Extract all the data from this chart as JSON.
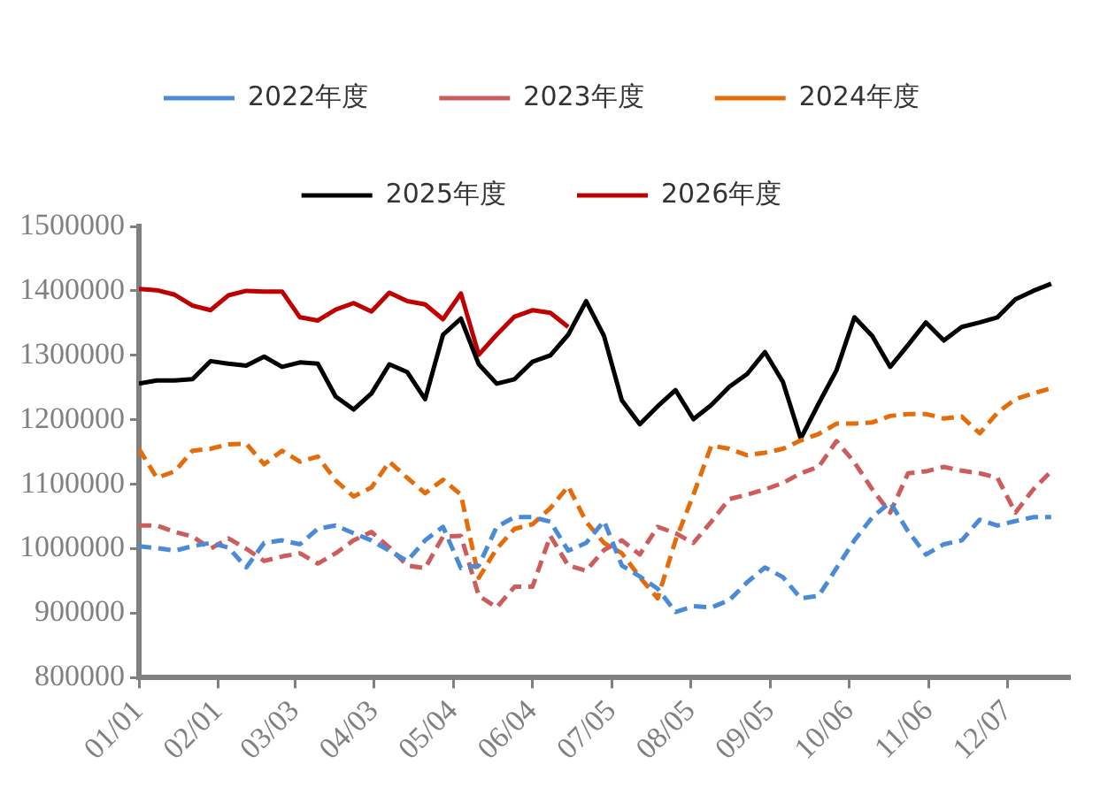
{
  "chart_data": {
    "type": "line",
    "x": [
      "--01-01",
      "--01-08",
      "--01-15",
      "--01-22",
      "--01-29",
      "--02-05",
      "--02-12",
      "--02-19",
      "--02-26",
      "--03-05",
      "--03-12",
      "--03-19",
      "--03-26",
      "--04-02",
      "--04-09",
      "--04-16",
      "--04-23",
      "--04-30",
      "--05-07",
      "--05-14",
      "--05-21",
      "--05-28",
      "--06-04",
      "--06-11",
      "--06-18",
      "--06-25",
      "--07-02",
      "--07-09",
      "--07-16",
      "--07-23",
      "--07-30",
      "--08-06",
      "--08-13",
      "--08-20",
      "--08-27",
      "--09-03",
      "--09-10",
      "--09-17",
      "--09-24",
      "--10-01",
      "--10-08",
      "--10-15",
      "--10-22",
      "--10-29",
      "--11-05",
      "--11-12",
      "--11-19",
      "--11-26",
      "--12-03",
      "--12-10",
      "--12-17",
      "--12-24"
    ],
    "series": [
      {
        "name": "2022年度",
        "color": "#4a8ad6",
        "line_style": "dashed",
        "values": [
          1004000,
          1001000,
          997000,
          1004000,
          1009000,
          1002000,
          971000,
          1009000,
          1013000,
          1007000,
          1031000,
          1036000,
          1024000,
          1013000,
          997000,
          981000,
          1013000,
          1034000,
          970000,
          974000,
          1034000,
          1049000,
          1049000,
          1042000,
          997000,
          1009000,
          1043000,
          974000,
          957000,
          938000,
          902000,
          911000,
          909000,
          920000,
          948000,
          971000,
          956000,
          923000,
          927000,
          970000,
          1013000,
          1049000,
          1072000,
          1027000,
          991000,
          1007000,
          1013000,
          1045000,
          1036000,
          1043000,
          1049000,
          1049000
        ]
      },
      {
        "name": "2023年度",
        "color": "#cd5c5c",
        "line_style": "dashed",
        "values": [
          1036000,
          1036000,
          1026000,
          1019000,
          1000000,
          1016000,
          1000000,
          981000,
          988000,
          993000,
          977000,
          993000,
          1013000,
          1026000,
          1002000,
          974000,
          970000,
          1019000,
          1020000,
          927000,
          909000,
          941000,
          941000,
          1020000,
          974000,
          966000,
          998000,
          1013000,
          991000,
          1034000,
          1024000,
          1009000,
          1042000,
          1077000,
          1084000,
          1092000,
          1102000,
          1117000,
          1127000,
          1167000,
          1134000,
          1092000,
          1056000,
          1117000,
          1120000,
          1127000,
          1121000,
          1117000,
          1110000,
          1056000,
          1092000,
          1120000
        ]
      },
      {
        "name": "2024年度",
        "color": "#e46c0a",
        "line_style": "dashed",
        "values": [
          1155000,
          1110000,
          1120000,
          1152000,
          1155000,
          1162000,
          1163000,
          1131000,
          1152000,
          1135000,
          1143000,
          1106000,
          1081000,
          1095000,
          1135000,
          1110000,
          1086000,
          1107000,
          1084000,
          955000,
          1000000,
          1031000,
          1038000,
          1063000,
          1097000,
          1042000,
          1009000,
          993000,
          956000,
          923000,
          1013000,
          1084000,
          1160000,
          1155000,
          1145000,
          1149000,
          1155000,
          1168000,
          1178000,
          1194000,
          1194000,
          1196000,
          1206000,
          1209000,
          1209000,
          1202000,
          1205000,
          1179000,
          1211000,
          1232000,
          1241000,
          1249000
        ]
      },
      {
        "name": "2025年度",
        "color": "#000000",
        "line_style": "solid",
        "values": [
          1256000,
          1261000,
          1261000,
          1263000,
          1291000,
          1287000,
          1284000,
          1298000,
          1282000,
          1289000,
          1287000,
          1236000,
          1216000,
          1241000,
          1286000,
          1274000,
          1232000,
          1332000,
          1357000,
          1286000,
          1256000,
          1263000,
          1290000,
          1300000,
          1332000,
          1384000,
          1330000,
          1230000,
          1193000,
          1221000,
          1246000,
          1201000,
          1223000,
          1251000,
          1271000,
          1305000,
          1259000,
          1171000,
          1225000,
          1277000,
          1359000,
          1330000,
          1282000,
          1316000,
          1351000,
          1323000,
          1344000,
          1351000,
          1359000,
          1387000,
          1400000,
          1411000
        ]
      },
      {
        "name": "2026年度",
        "color": "#c00000",
        "line_style": "solid",
        "x": [
          "--01-01",
          "--01-08",
          "--01-15",
          "--01-22",
          "--01-29",
          "--02-05",
          "--02-12",
          "--02-19",
          "--02-26",
          "--03-05",
          "--03-12",
          "--03-19",
          "--03-26",
          "--04-02",
          "--04-09",
          "--04-16",
          "--04-23",
          "--04-30",
          "--05-07",
          "--05-14",
          "--05-21",
          "--05-28",
          "--06-04",
          "--06-11",
          "--06-18"
        ],
        "values": [
          1403000,
          1401000,
          1394000,
          1377000,
          1370000,
          1393000,
          1400000,
          1399000,
          1399000,
          1359000,
          1354000,
          1371000,
          1381000,
          1368000,
          1397000,
          1384000,
          1379000,
          1356000,
          1396000,
          1301000,
          1332000,
          1360000,
          1370000,
          1366000,
          1344000
        ]
      }
    ],
    "xlim": [
      "--01-01",
      "--12-31"
    ],
    "xticks": [
      {
        "value": "--01-01",
        "label": "01/01"
      },
      {
        "value": "--02-01",
        "label": "02/01"
      },
      {
        "value": "--03-03",
        "label": "03/03"
      },
      {
        "value": "--04-03",
        "label": "04/03"
      },
      {
        "value": "--05-04",
        "label": "05/04"
      },
      {
        "value": "--06-04",
        "label": "06/04"
      },
      {
        "value": "--07-05",
        "label": "07/05"
      },
      {
        "value": "--08-05",
        "label": "08/05"
      },
      {
        "value": "--09-05",
        "label": "09/05"
      },
      {
        "value": "--10-06",
        "label": "10/06"
      },
      {
        "value": "--11-06",
        "label": "11/06"
      },
      {
        "value": "--12-07",
        "label": "12/07"
      }
    ],
    "ylim": [
      800000,
      1500000
    ],
    "yticks": [
      800000,
      900000,
      1000000,
      1100000,
      1200000,
      1300000,
      1400000,
      1500000
    ],
    "grid": false,
    "legend": "top",
    "marker": "none"
  }
}
